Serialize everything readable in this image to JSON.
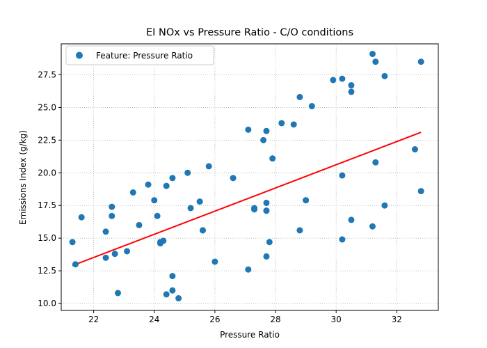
{
  "chart_data": {
    "type": "scatter",
    "title": "EI NOx vs Pressure Ratio - C/O conditions",
    "xlabel": "Pressure Ratio",
    "ylabel": "Emissions Index (g/kg)",
    "xlim": [
      20.93,
      33.37
    ],
    "ylim": [
      9.47,
      29.87
    ],
    "xticks": [
      22,
      24,
      26,
      28,
      30,
      32
    ],
    "yticks": [
      10.0,
      12.5,
      15.0,
      17.5,
      20.0,
      22.5,
      25.0,
      27.5
    ],
    "xtick_labels": [
      "22",
      "24",
      "26",
      "28",
      "30",
      "32"
    ],
    "ytick_labels": [
      "10.0",
      "12.5",
      "15.0",
      "17.5",
      "20.0",
      "22.5",
      "25.0",
      "27.5"
    ],
    "grid": true,
    "legend": {
      "placement": "top-left",
      "entries": [
        "Feature: Pressure Ratio"
      ]
    },
    "series": [
      {
        "name": "Feature: Pressure Ratio",
        "color": "#1f77b4",
        "points": [
          [
            21.3,
            14.7
          ],
          [
            21.4,
            13.0
          ],
          [
            21.6,
            16.6
          ],
          [
            22.4,
            15.5
          ],
          [
            22.4,
            13.5
          ],
          [
            22.6,
            17.4
          ],
          [
            22.6,
            16.7
          ],
          [
            22.7,
            13.8
          ],
          [
            22.8,
            10.8
          ],
          [
            23.1,
            14.0
          ],
          [
            23.3,
            18.5
          ],
          [
            23.5,
            16.0
          ],
          [
            23.8,
            19.1
          ],
          [
            24.0,
            17.9
          ],
          [
            24.1,
            16.7
          ],
          [
            24.2,
            14.7
          ],
          [
            24.2,
            14.6
          ],
          [
            24.3,
            14.8
          ],
          [
            24.4,
            19.0
          ],
          [
            24.4,
            10.7
          ],
          [
            24.6,
            19.6
          ],
          [
            24.6,
            12.1
          ],
          [
            24.6,
            11.0
          ],
          [
            24.8,
            10.4
          ],
          [
            25.1,
            20.0
          ],
          [
            25.2,
            17.3
          ],
          [
            25.5,
            17.8
          ],
          [
            25.6,
            15.6
          ],
          [
            25.6,
            15.6
          ],
          [
            25.8,
            20.5
          ],
          [
            26.0,
            13.2
          ],
          [
            26.6,
            19.6
          ],
          [
            27.1,
            23.3
          ],
          [
            27.1,
            12.6
          ],
          [
            27.3,
            17.3
          ],
          [
            27.3,
            17.2
          ],
          [
            27.6,
            22.5
          ],
          [
            27.7,
            23.2
          ],
          [
            27.7,
            17.7
          ],
          [
            27.7,
            17.1
          ],
          [
            27.7,
            17.1
          ],
          [
            27.7,
            13.6
          ],
          [
            27.8,
            14.7
          ],
          [
            27.9,
            21.1
          ],
          [
            28.2,
            23.8
          ],
          [
            28.6,
            23.7
          ],
          [
            28.8,
            25.8
          ],
          [
            28.8,
            15.6
          ],
          [
            29.0,
            17.9
          ],
          [
            29.0,
            17.9
          ],
          [
            29.2,
            25.1
          ],
          [
            29.9,
            27.1
          ],
          [
            30.2,
            27.2
          ],
          [
            30.2,
            19.8
          ],
          [
            30.2,
            14.9
          ],
          [
            30.5,
            26.7
          ],
          [
            30.5,
            26.2
          ],
          [
            30.5,
            16.4
          ],
          [
            31.2,
            29.1
          ],
          [
            31.2,
            15.9
          ],
          [
            31.3,
            28.5
          ],
          [
            31.3,
            20.8
          ],
          [
            31.6,
            27.4
          ],
          [
            31.6,
            17.5
          ],
          [
            32.6,
            21.8
          ],
          [
            32.8,
            28.5
          ],
          [
            32.8,
            18.6
          ]
        ]
      }
    ],
    "fit_line": {
      "color": "#ff0000",
      "x": [
        21.3,
        32.8
      ],
      "y": [
        12.9,
        23.1
      ]
    }
  }
}
